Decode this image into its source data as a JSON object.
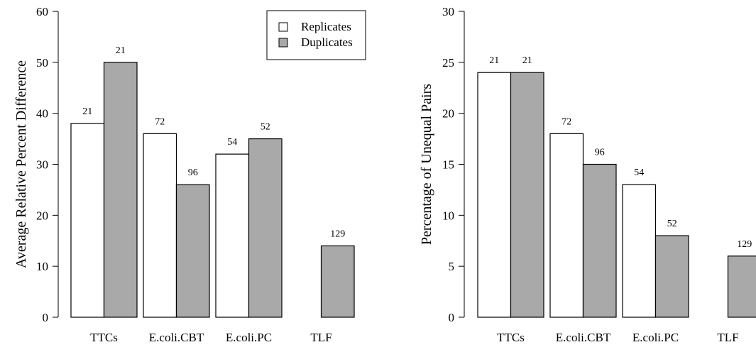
{
  "chart_data": [
    {
      "type": "bar",
      "ylabel": "Average Relative Percent Difference",
      "xlabel": "",
      "ylim": [
        0,
        60
      ],
      "yticks": [
        "0",
        "10",
        "20",
        "30",
        "40",
        "50",
        "60"
      ],
      "categories": [
        "TTCs",
        "E.coli.CBT",
        "E.coli.PC",
        "TLF"
      ],
      "series": [
        {
          "name": "Replicates",
          "color": "#ffffff",
          "values": [
            38,
            36,
            32,
            null
          ],
          "labels": [
            "21",
            "72",
            "54",
            ""
          ]
        },
        {
          "name": "Duplicates",
          "color": "#a9a9a9",
          "values": [
            50,
            26,
            35,
            14
          ],
          "labels": [
            "21",
            "96",
            "52",
            "129"
          ]
        }
      ],
      "legend": {
        "position": "top-right",
        "entries": [
          "Replicates",
          "Duplicates"
        ]
      },
      "grid": false
    },
    {
      "type": "bar",
      "ylabel": "Percentage of Unequal Pairs",
      "xlabel": "",
      "ylim": [
        0,
        30
      ],
      "yticks": [
        "0",
        "5",
        "10",
        "15",
        "20",
        "25",
        "30"
      ],
      "categories": [
        "TTCs",
        "E.coli.CBT",
        "E.coli.PC",
        "TLF"
      ],
      "series": [
        {
          "name": "Replicates",
          "color": "#ffffff",
          "values": [
            24,
            18,
            13,
            null
          ],
          "labels": [
            "21",
            "72",
            "54",
            ""
          ]
        },
        {
          "name": "Duplicates",
          "color": "#a9a9a9",
          "values": [
            24,
            15,
            8,
            6
          ],
          "labels": [
            "21",
            "96",
            "52",
            "129"
          ]
        }
      ],
      "legend": null,
      "grid": false
    }
  ]
}
